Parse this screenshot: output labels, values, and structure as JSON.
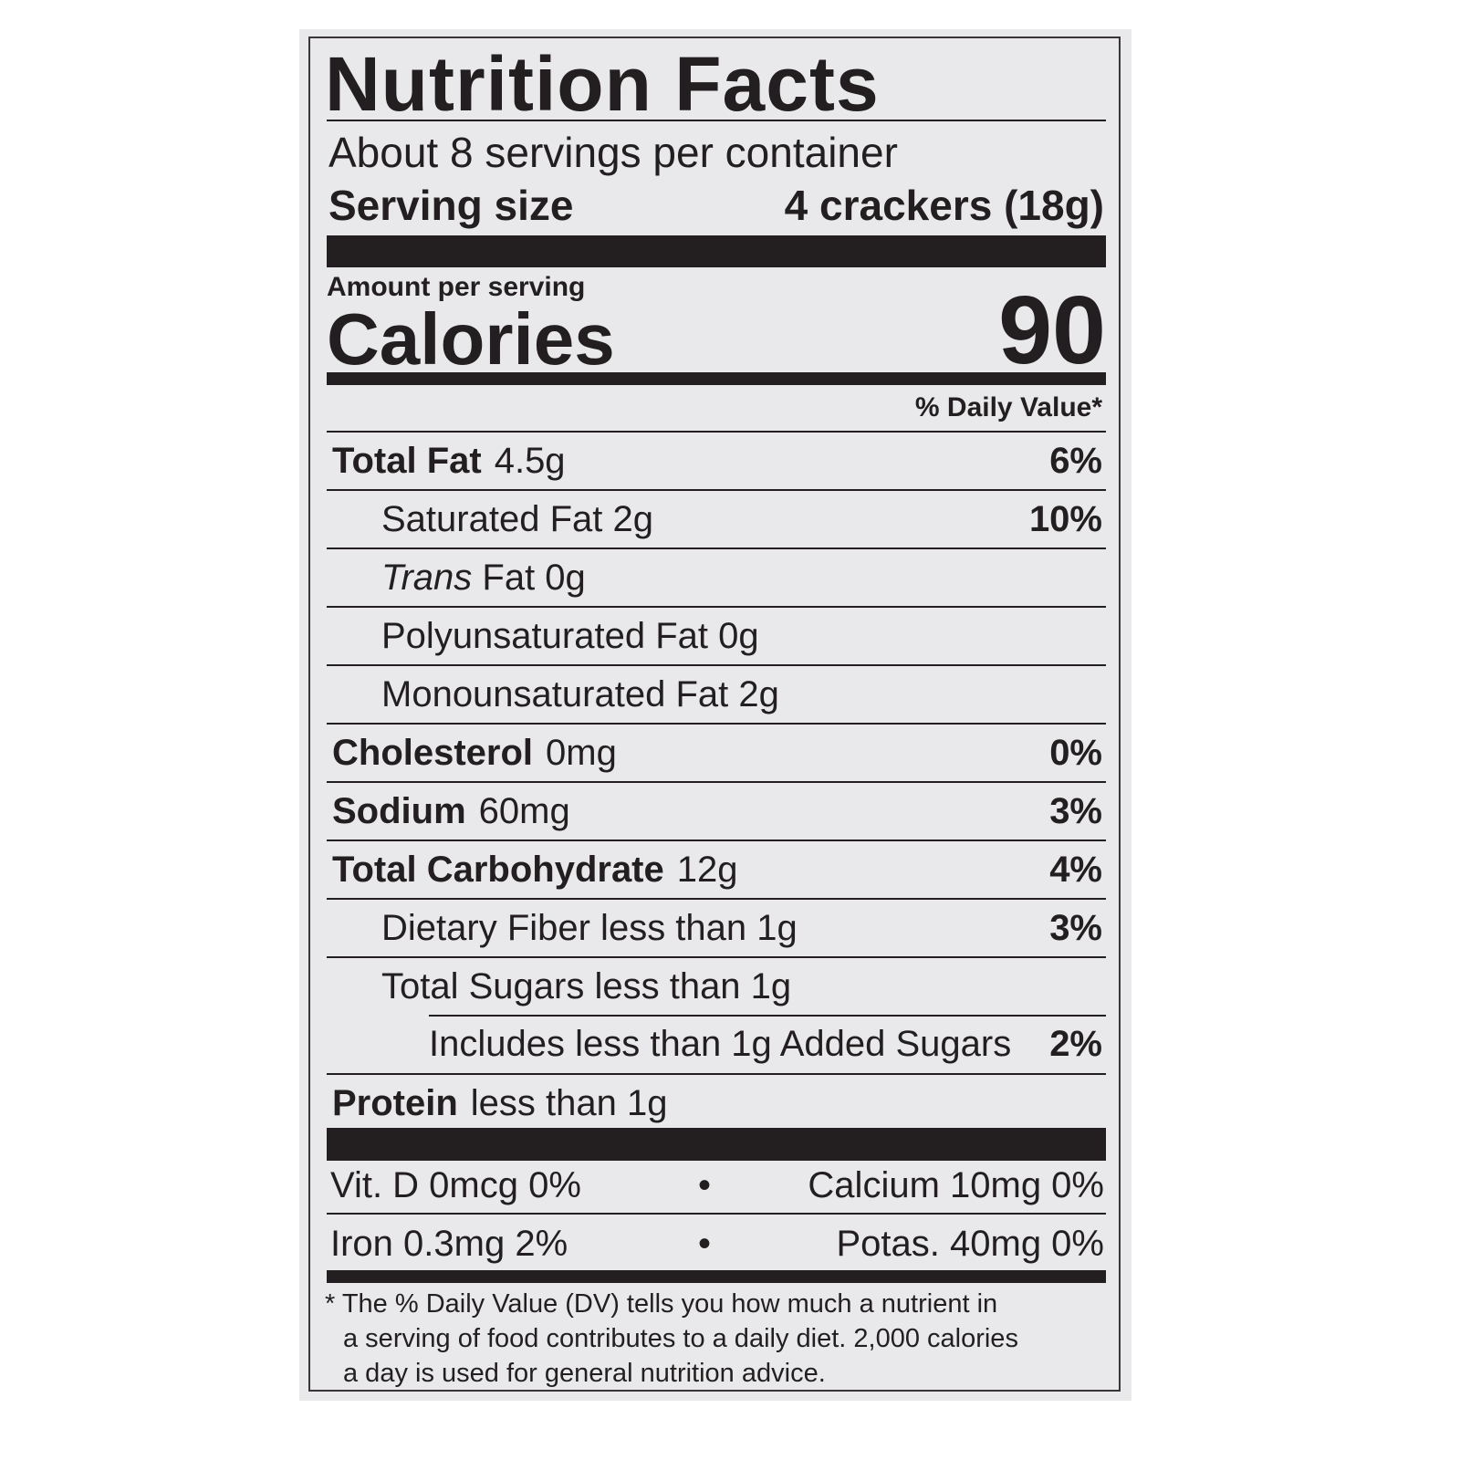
{
  "title": "Nutrition Facts",
  "servings_per_container": "About 8 servings per container",
  "serving_size": {
    "label": "Serving size",
    "value": "4 crackers (18g)"
  },
  "amount_per_serving": "Amount per serving",
  "calories": {
    "label": "Calories",
    "value": "90"
  },
  "dv_header": "% Daily Value*",
  "rows": [
    {
      "label": "Total Fat",
      "amount": "4.5g",
      "dv": "6%"
    },
    {
      "label": "",
      "amount": "Saturated Fat 2g",
      "dv": "10%"
    },
    {
      "label": "",
      "italic": "Trans",
      "amount": " Fat 0g",
      "dv": ""
    },
    {
      "label": "",
      "amount": "Polyunsaturated Fat 0g",
      "dv": ""
    },
    {
      "label": "",
      "amount": "Monounsaturated Fat 2g",
      "dv": ""
    },
    {
      "label": "Cholesterol",
      "amount": "0mg",
      "dv": "0%"
    },
    {
      "label": "Sodium",
      "amount": "60mg",
      "dv": "3%"
    },
    {
      "label": "Total Carbohydrate",
      "amount": "12g",
      "dv": "4%"
    },
    {
      "label": "",
      "amount": "Dietary Fiber less than 1g",
      "dv": "3%"
    },
    {
      "label": "",
      "amount": "Total Sugars less than 1g",
      "dv": ""
    },
    {
      "label": "",
      "amount": "Includes less than 1g Added Sugars",
      "dv": "2%"
    },
    {
      "label": "Protein",
      "amount": "less than 1g",
      "dv": ""
    }
  ],
  "vitamins": [
    {
      "left": "Vit. D 0mcg 0%",
      "sep": "•",
      "right": "Calcium 10mg 0%"
    },
    {
      "left": "Iron 0.3mg 2%",
      "sep": "•",
      "right": "Potas. 40mg 0%"
    }
  ],
  "footnote": {
    "line1": "* The % Daily Value (DV) tells you how much a nutrient in",
    "line2": "a serving of food contributes to a daily diet. 2,000 calories",
    "line3": "a day is used for general nutrition advice."
  }
}
